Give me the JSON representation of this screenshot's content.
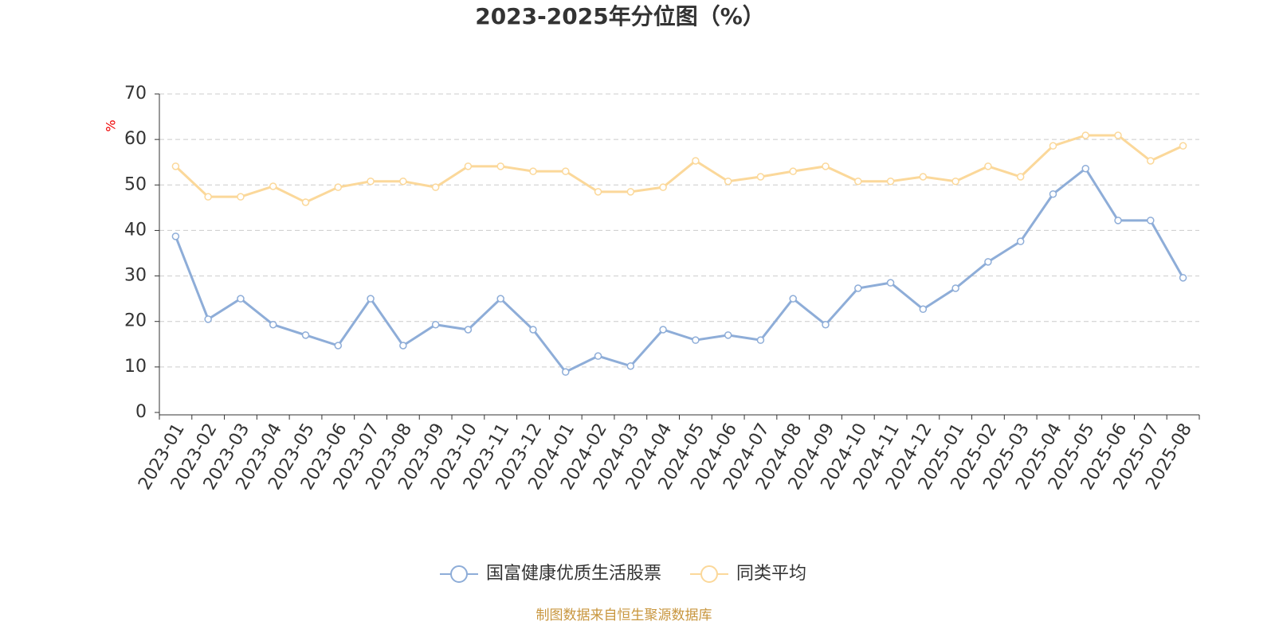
{
  "chart_data": {
    "type": "line",
    "title": "2023-2025年分位图（%）",
    "y_unit": "%",
    "categories": [
      "2023-01",
      "2023-02",
      "2023-03",
      "2023-04",
      "2023-05",
      "2023-06",
      "2023-07",
      "2023-08",
      "2023-09",
      "2023-10",
      "2023-11",
      "2023-12",
      "2024-01",
      "2024-02",
      "2024-03",
      "2024-04",
      "2024-05",
      "2024-06",
      "2024-07",
      "2024-08",
      "2024-09",
      "2024-10",
      "2024-11",
      "2024-12",
      "2025-01",
      "2025-02",
      "2025-03",
      "2025-04",
      "2025-05",
      "2025-06",
      "2025-07",
      "2025-08"
    ],
    "series": [
      {
        "name": "国富健康优质生活股票",
        "color": "#8eadd8",
        "values": [
          38.7,
          20.5,
          25.0,
          19.3,
          17.0,
          14.7,
          25.0,
          14.7,
          19.3,
          18.2,
          25.0,
          18.2,
          8.9,
          12.4,
          10.2,
          18.2,
          15.9,
          17.0,
          15.9,
          25.0,
          19.3,
          27.3,
          28.5,
          22.7,
          27.3,
          33.1,
          37.6,
          48.0,
          53.6,
          42.2,
          42.2,
          29.6
        ]
      },
      {
        "name": "同类平均",
        "color": "#fbd89a",
        "values": [
          54.1,
          47.4,
          47.4,
          49.7,
          46.2,
          49.5,
          50.8,
          50.8,
          49.5,
          54.1,
          54.1,
          53.0,
          53.0,
          48.5,
          48.5,
          49.5,
          55.3,
          50.8,
          51.8,
          53.0,
          54.1,
          50.8,
          50.8,
          51.8,
          50.8,
          54.1,
          51.8,
          58.6,
          60.9,
          60.9,
          55.3,
          58.6
        ]
      }
    ],
    "ylim": [
      0,
      70
    ],
    "yticks": [
      0,
      10,
      20,
      30,
      40,
      50,
      60,
      70
    ],
    "grid": true,
    "legend": "bottom",
    "source": "制图数据来自恒生聚源数据库"
  }
}
